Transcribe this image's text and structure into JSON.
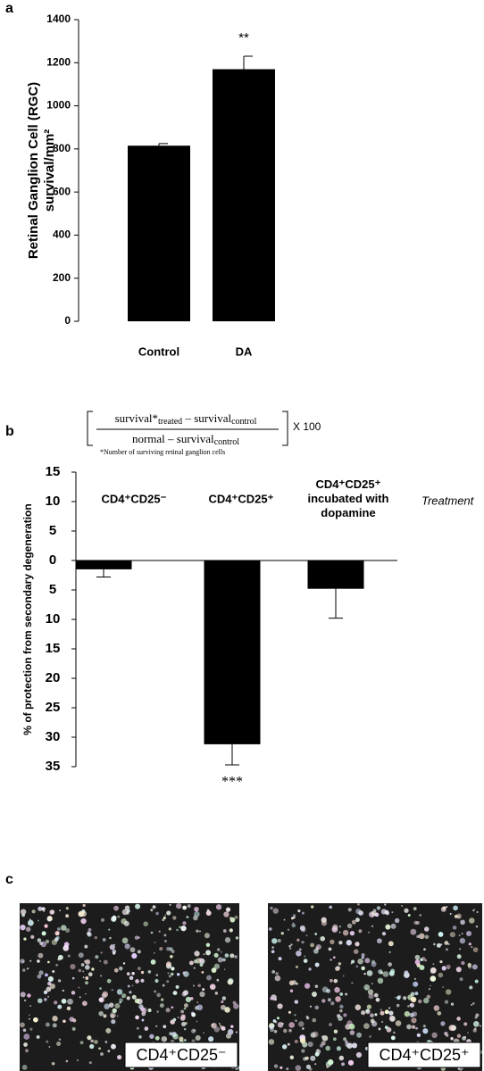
{
  "chart_data": [
    {
      "type": "bar",
      "panel": "a",
      "ylabel": [
        "Retinal Ganglion Cell (RGC)",
        "survival/mm²"
      ],
      "categories": [
        "Control",
        "DA"
      ],
      "values": [
        815,
        1170
      ],
      "errors": [
        10,
        60
      ],
      "color": "#000000",
      "ylim": [
        0,
        1400
      ],
      "yticks": [
        0,
        200,
        400,
        600,
        800,
        1000,
        1200,
        1400
      ],
      "annotation": "**"
    },
    {
      "type": "bar",
      "panel": "b",
      "ylabel": "% of protection from secondary degeneration",
      "formula": {
        "numerator": [
          "survival*",
          "treated",
          " – survival",
          "control"
        ],
        "denominator": [
          "normal – survival",
          "control"
        ],
        "factor": "X 100",
        "note": "*Number of surviving retinal ganglion cells"
      },
      "categories": [
        "CD4⁺CD25⁻",
        "CD4⁺CD25⁺",
        "CD4⁺CD25⁺ incubated with dopamine"
      ],
      "category_title": "Treatment",
      "values": [
        -1.5,
        -31.2,
        -4.8
      ],
      "errors": [
        1.3,
        3.5,
        5
      ],
      "color": "#000000",
      "ylim": [
        -35,
        15
      ],
      "yticks": [
        15,
        10,
        5,
        0,
        {
          "value": -5,
          "label": "5"
        },
        {
          "value": -10,
          "label": "10"
        },
        {
          "value": -15,
          "label": "15"
        },
        {
          "value": -20,
          "label": "20"
        },
        {
          "value": -25,
          "label": "25"
        },
        {
          "value": -30,
          "label": "30"
        },
        {
          "value": -35,
          "label": "35"
        }
      ],
      "annotation": "***"
    }
  ],
  "panel_c": {
    "panel": "c",
    "images": [
      {
        "label": "CD4⁺CD25⁻"
      },
      {
        "label": "CD4⁺CD25⁺"
      }
    ]
  }
}
